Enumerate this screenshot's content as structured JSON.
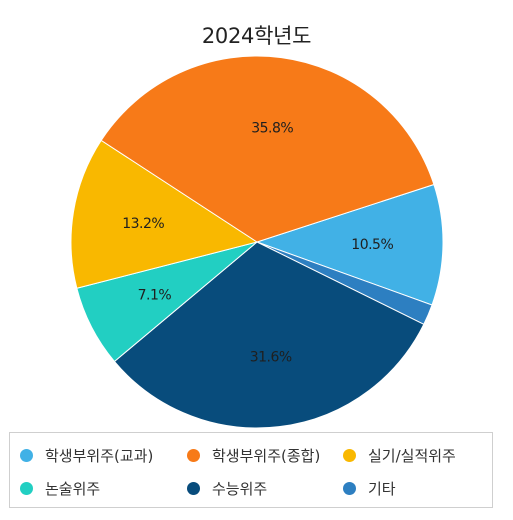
{
  "chart_data": {
    "type": "pie",
    "title": "2024학년도",
    "slices": [
      {
        "name": "학생부위주(교과)",
        "value": 10.5,
        "label": "10.5%",
        "color": "#41b1e6"
      },
      {
        "name": "기타",
        "value": 1.8,
        "label": "",
        "color": "#2d7fc1"
      },
      {
        "name": "수능위주",
        "value": 31.6,
        "label": "31.6%",
        "color": "#084c7c"
      },
      {
        "name": "논술위주",
        "value": 7.1,
        "label": "7.1%",
        "color": "#22cfc2"
      },
      {
        "name": "실기/실적위주",
        "value": 13.2,
        "label": "13.2%",
        "color": "#f9b800"
      },
      {
        "name": "학생부위주(종합)",
        "value": 35.8,
        "label": "35.8%",
        "color": "#f77a18"
      }
    ],
    "legend": {
      "position": "bottom",
      "items": [
        {
          "name": "학생부위주(교과)",
          "color": "#41b1e6"
        },
        {
          "name": "학생부위주(종합)",
          "color": "#f77a18"
        },
        {
          "name": "실기/실적위주",
          "color": "#f9b800"
        },
        {
          "name": "논술위주",
          "color": "#22cfc2"
        },
        {
          "name": "수능위주",
          "color": "#084c7c"
        },
        {
          "name": "기타",
          "color": "#2d7fc1"
        }
      ]
    }
  }
}
